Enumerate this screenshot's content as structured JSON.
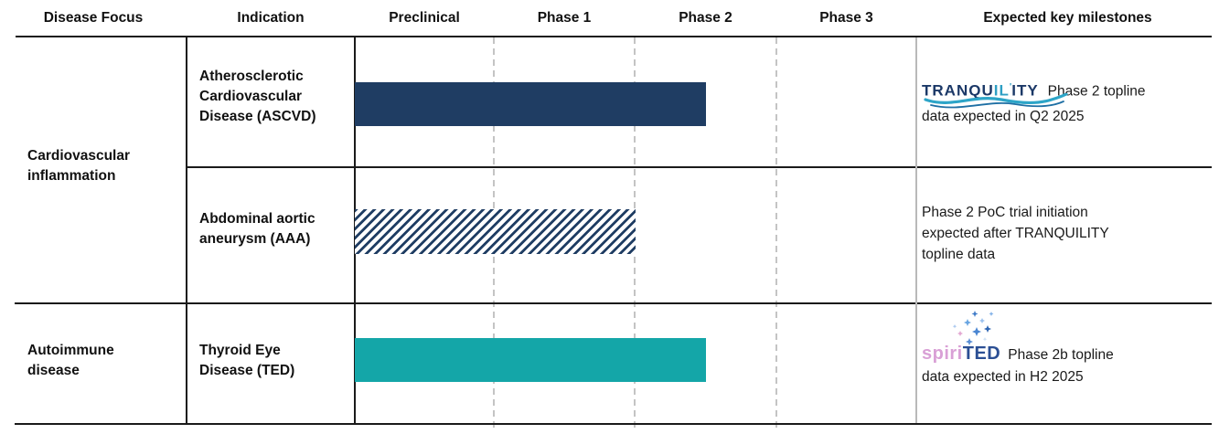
{
  "header": {
    "columns": [
      "Disease Focus",
      "Indication",
      "Preclinical",
      "Phase 1",
      "Phase 2",
      "Phase 3",
      "Expected key milestones"
    ]
  },
  "sections": [
    {
      "disease_focus": "Cardiovascular inflammation",
      "rows": [
        {
          "indication": "Atherosclerotic Cardiovascular Disease (ASCVD)",
          "milestone": {
            "logo": "TRANQUILITY",
            "lines": [
              "Phase 2 topline",
              "data expected in Q2 2025"
            ]
          }
        },
        {
          "indication": "Abdominal aortic aneurysm (AAA)",
          "milestone": {
            "lines": [
              "Phase 2 PoC trial initiation",
              "expected after TRANQUILITY",
              "topline data"
            ]
          }
        }
      ]
    },
    {
      "disease_focus": "Autoimmune disease",
      "rows": [
        {
          "indication": "Thyroid Eye Disease (TED)",
          "milestone": {
            "logo": "spiriTED",
            "lines": [
              "Phase 2b topline",
              "data expected in H2 2025"
            ]
          }
        }
      ]
    }
  ],
  "logos": {
    "tranquility": {
      "prefix": "TRANQU",
      "mid": "IL",
      "apostrophe": "'",
      "suffix": "ITY",
      "navy": "#1b3867",
      "teal": "#2e9fc4"
    },
    "spirited": {
      "pink_part": "spiri",
      "blue_part": "TED",
      "pink": "#d9a0d6",
      "blue": "#2b4f94"
    }
  },
  "chart_data": {
    "type": "bar",
    "subtype": "pipeline-gantt",
    "phase_columns": [
      "Preclinical",
      "Phase 1",
      "Phase 2",
      "Phase 3"
    ],
    "grid": "dashed-vertical-separators",
    "bars": [
      {
        "label": "Atherosclerotic Cardiovascular Disease (ASCVD)",
        "program": "TRANQUILITY",
        "start": 0,
        "end": 2.5,
        "style": "solid",
        "color": "#1f3d63"
      },
      {
        "label": "Abdominal aortic aneurysm (AAA)",
        "program": "AAA Phase 2 PoC",
        "start": 0,
        "end": 2.0,
        "style": "hatched",
        "color": "#1f3d63"
      },
      {
        "label": "Thyroid Eye Disease (TED)",
        "program": "spiriTED",
        "start": 0,
        "end": 2.5,
        "style": "solid",
        "color": "#14a6a8"
      }
    ]
  }
}
